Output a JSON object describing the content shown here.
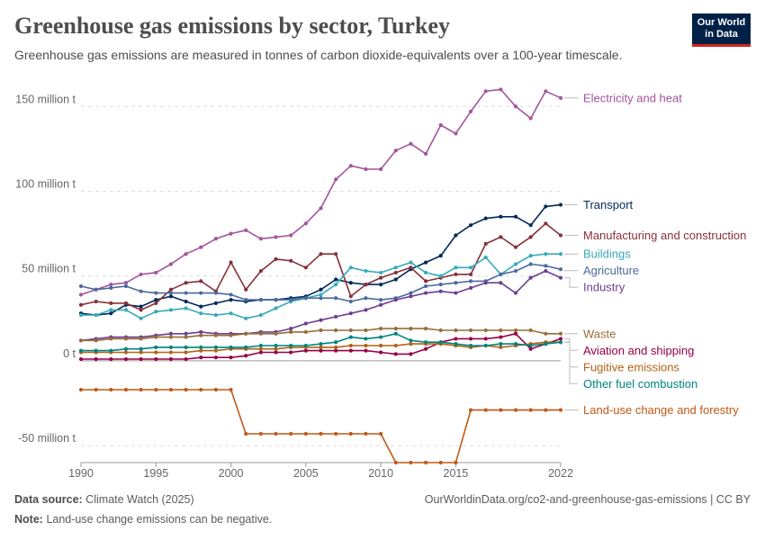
{
  "header": {
    "title": "Greenhouse gas emissions by sector, Turkey",
    "subtitle": "Greenhouse gas emissions are measured in tonnes of carbon dioxide-equivalents over a 100-year timescale.",
    "logo_line1": "Our World",
    "logo_line2": "in Data"
  },
  "footer": {
    "source_label": "Data source:",
    "source_value": "Climate Watch (2025)",
    "url": "OurWorldinData.org/co2-and-greenhouse-gas-emissions | CC BY",
    "note_label": "Note:",
    "note_value": "Land-use change emissions can be negative."
  },
  "chart_data": {
    "type": "line",
    "x": [
      1990,
      1991,
      1992,
      1993,
      1994,
      1995,
      1996,
      1997,
      1998,
      1999,
      2000,
      2001,
      2002,
      2003,
      2004,
      2005,
      2006,
      2007,
      2008,
      2009,
      2010,
      2011,
      2012,
      2013,
      2014,
      2015,
      2016,
      2017,
      2018,
      2019,
      2020,
      2021,
      2022
    ],
    "xticks": [
      1990,
      1995,
      2000,
      2005,
      2010,
      2015,
      2022
    ],
    "xtick_labels": [
      "1990",
      "1995",
      "2000",
      "2005",
      "2010",
      "2015",
      "2022"
    ],
    "yticks": [
      -50,
      0,
      50,
      100,
      150
    ],
    "ytick_labels": [
      "-50 million t",
      "0 t",
      "50 million t",
      "100 million t",
      "150 million t"
    ],
    "xlim": [
      1990,
      2022
    ],
    "ylim": [
      -60,
      165
    ],
    "grid": "horizontal dashed",
    "legend": "line-end labels on right",
    "series": [
      {
        "name": "Electricity and heat",
        "color": "#a2559c",
        "values": [
          39,
          42,
          45,
          46,
          51,
          52,
          57,
          63,
          67,
          72,
          75,
          77,
          72,
          73,
          74,
          81,
          90,
          107,
          115,
          113,
          113,
          124,
          128,
          122,
          139,
          134,
          147,
          159,
          160,
          150,
          143,
          159,
          155
        ]
      },
      {
        "name": "Transport",
        "color": "#00295b",
        "values": [
          28,
          27,
          28,
          33,
          32,
          36,
          38,
          35,
          32,
          34,
          36,
          35,
          36,
          36,
          37,
          38,
          42,
          48,
          46,
          45,
          45,
          48,
          54,
          58,
          62,
          74,
          80,
          84,
          85,
          85,
          80,
          91,
          92
        ]
      },
      {
        "name": "Manufacturing and construction",
        "color": "#883039",
        "values": [
          33,
          35,
          34,
          34,
          30,
          34,
          42,
          46,
          47,
          41,
          58,
          42,
          53,
          60,
          59,
          55,
          63,
          63,
          38,
          45,
          49,
          52,
          55,
          47,
          49,
          51,
          51,
          69,
          73,
          67,
          73,
          81,
          74
        ]
      },
      {
        "name": "Buildings",
        "color": "#38aaba",
        "values": [
          27,
          27,
          30,
          30,
          25,
          29,
          30,
          31,
          28,
          27,
          28,
          25,
          27,
          31,
          35,
          37,
          39,
          45,
          55,
          53,
          52,
          55,
          58,
          52,
          50,
          55,
          55,
          61,
          51,
          57,
          62,
          63,
          63
        ]
      },
      {
        "name": "Agriculture",
        "color": "#4c6a9c",
        "values": [
          44,
          42,
          43,
          44,
          41,
          40,
          40,
          40,
          40,
          40,
          39,
          36,
          36,
          36,
          36,
          37,
          37,
          37,
          35,
          37,
          36,
          37,
          40,
          44,
          45,
          46,
          47,
          47,
          51,
          53,
          57,
          56,
          54
        ]
      },
      {
        "name": "Industry",
        "color": "#6d3e91",
        "values": [
          12,
          13,
          14,
          14,
          14,
          15,
          16,
          16,
          17,
          16,
          16,
          16,
          17,
          17,
          19,
          22,
          24,
          26,
          28,
          30,
          33,
          36,
          38,
          40,
          41,
          40,
          43,
          46,
          46,
          40,
          49,
          53,
          49
        ]
      },
      {
        "name": "Waste",
        "color": "#996d39",
        "values": [
          12,
          12,
          13,
          13,
          13,
          14,
          14,
          14,
          15,
          15,
          15,
          16,
          16,
          16,
          17,
          17,
          18,
          18,
          18,
          18,
          19,
          19,
          19,
          19,
          18,
          18,
          18,
          18,
          18,
          18,
          18,
          16,
          16
        ]
      },
      {
        "name": "Aviation and shipping",
        "color": "#970046",
        "values": [
          1,
          1,
          1,
          1,
          1,
          1,
          1,
          1,
          2,
          2,
          2,
          3,
          5,
          5,
          5,
          6,
          6,
          6,
          6,
          6,
          5,
          4,
          4,
          7,
          11,
          13,
          13,
          13,
          14,
          16,
          7,
          10,
          13
        ]
      },
      {
        "name": "Fugitive emissions",
        "color": "#b16214",
        "values": [
          5,
          5,
          5,
          5,
          5,
          5,
          5,
          5,
          6,
          6,
          7,
          7,
          7,
          7,
          8,
          8,
          8,
          8,
          9,
          9,
          9,
          9,
          10,
          10,
          10,
          9,
          8,
          9,
          8,
          9,
          10,
          11,
          11
        ]
      },
      {
        "name": "Other fuel combustion",
        "color": "#00847e",
        "values": [
          6,
          6,
          6,
          7,
          7,
          8,
          8,
          8,
          8,
          8,
          8,
          8,
          9,
          9,
          9,
          9,
          10,
          11,
          14,
          13,
          14,
          16,
          12,
          11,
          11,
          10,
          9,
          9,
          10,
          10,
          9,
          10,
          11
        ]
      },
      {
        "name": "Land-use change and forestry",
        "color": "#c05917",
        "values": [
          -17,
          -17,
          -17,
          -17,
          -17,
          -17,
          -17,
          -17,
          -17,
          -17,
          -17,
          -43,
          -43,
          -43,
          -43,
          -43,
          -43,
          -43,
          -43,
          -43,
          -43,
          -60,
          -60,
          -60,
          -60,
          -60,
          -29,
          -29,
          -29,
          -29,
          -29,
          -29,
          -29
        ]
      }
    ]
  }
}
